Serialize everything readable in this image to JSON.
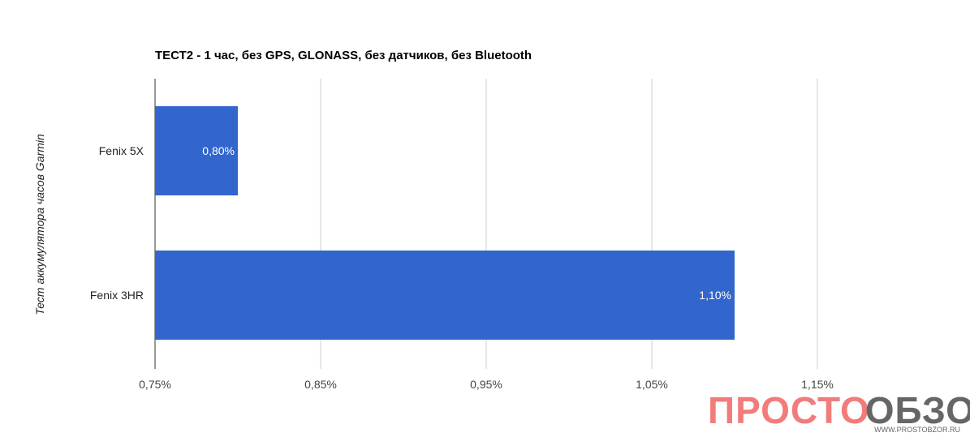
{
  "chart_data": {
    "type": "bar",
    "orientation": "horizontal",
    "title": "ТЕСТ2 - 1 час, без GPS, GLONASS, без датчиков, без Bluetooth",
    "ylabel": "Тест аккумулятора часов Garmin",
    "xlabel": "",
    "categories": [
      "Fenix 5X",
      "Fenix 3HR"
    ],
    "values": [
      0.8,
      1.1
    ],
    "data_labels": [
      "0,80%",
      "1,10%"
    ],
    "xlim": [
      0.75,
      1.19
    ],
    "xticks": [
      0.75,
      0.85,
      0.95,
      1.05,
      1.15
    ],
    "xtick_labels": [
      "0,75%",
      "0,85%",
      "0,95%",
      "1,05%",
      "1,15%"
    ],
    "grid": true,
    "bar_color": "#3366cc"
  },
  "watermark": {
    "part1": "ПРОСТО",
    "part2": "БЗОР",
    "url": "WWW.PROSTOBZOR.RU",
    "color1": "#f27c7c",
    "color2": "#666666"
  }
}
